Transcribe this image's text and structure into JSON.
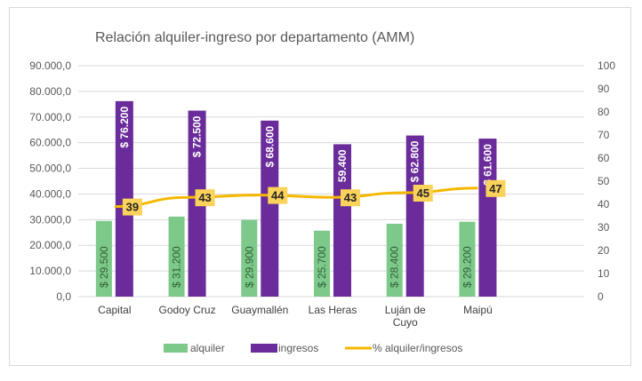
{
  "chart_data": {
    "type": "bar",
    "title": "Relación alquiler-ingreso por departamento (AMM)",
    "categories": [
      "Capital",
      "Godoy Cruz",
      "Guaymallén",
      "Las Heras",
      "Luján de Cuyo",
      "Maipú"
    ],
    "series": [
      {
        "name": "alquiler",
        "type": "bar",
        "axis": "left",
        "color": "#7dc98a",
        "values": [
          29500,
          31200,
          29900,
          25700,
          28400,
          29200
        ],
        "labels": [
          "$ 29.500",
          "$ 31.200",
          "$ 29.900",
          "$ 25.700",
          "$ 28.400",
          "$ 29.200"
        ]
      },
      {
        "name": "ingresos",
        "type": "bar",
        "axis": "left",
        "color": "#6a2c9a",
        "values": [
          76200,
          72500,
          68600,
          59400,
          62800,
          61600
        ],
        "labels": [
          "$ 76.200",
          "$ 72.500",
          "$ 68.600",
          "59.400",
          "$ 62.800",
          "$ 61.600"
        ]
      },
      {
        "name": "% alquiler/ingresos",
        "type": "line",
        "axis": "right",
        "color": "#f5b800",
        "values": [
          39,
          43,
          44,
          43,
          45,
          47
        ],
        "labels": [
          "39",
          "43",
          "44",
          "43",
          "45",
          "47"
        ]
      }
    ],
    "y_left": {
      "range": [
        0,
        90000
      ],
      "ticks": [
        "0,0",
        "10.000,0",
        "20.000,0",
        "30.000,0",
        "40.000,0",
        "50.000,0",
        "60.000,0",
        "70.000,0",
        "80.000,0",
        "90.000,0"
      ]
    },
    "y_right": {
      "range": [
        0,
        100
      ],
      "ticks": [
        "0",
        "10",
        "20",
        "30",
        "40",
        "50",
        "60",
        "70",
        "80",
        "90",
        "100"
      ]
    },
    "grid": true,
    "legend": "bottom"
  }
}
